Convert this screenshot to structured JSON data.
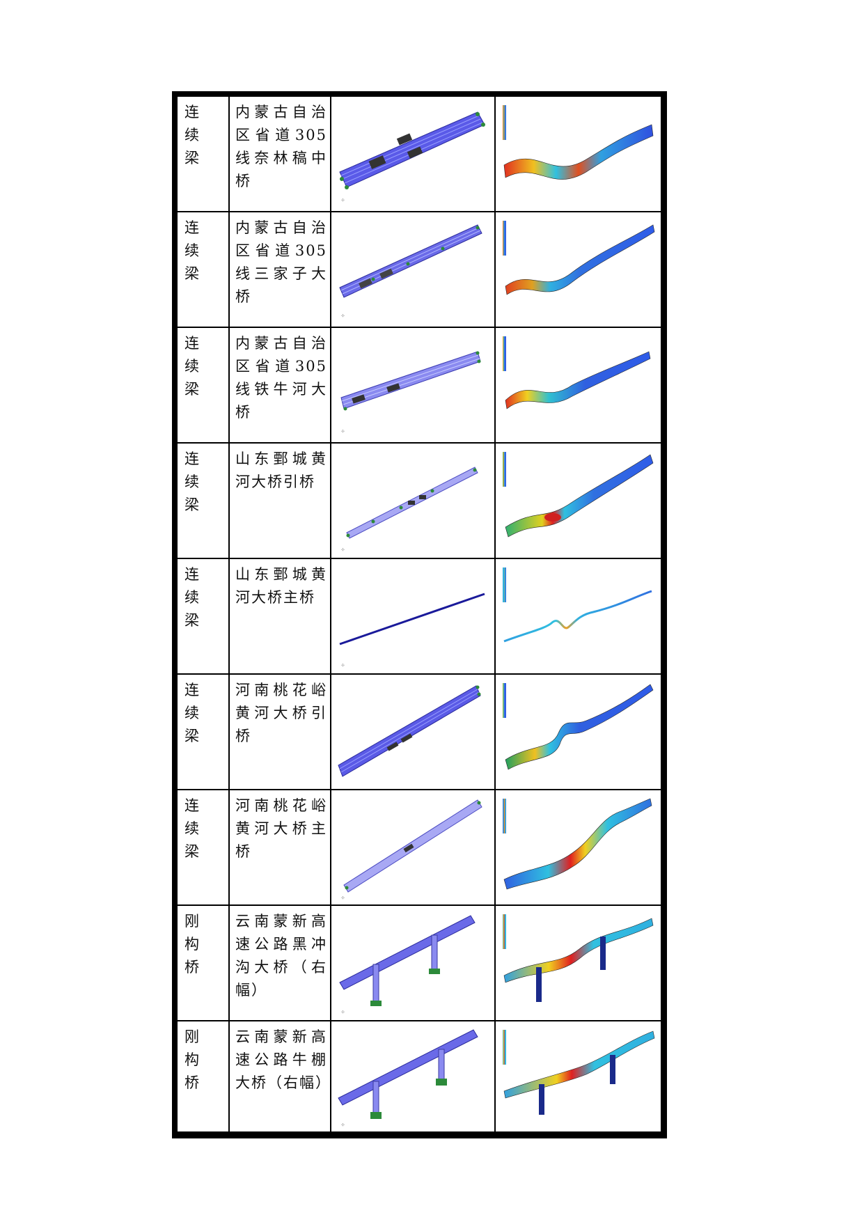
{
  "rows": [
    {
      "type": "连 续梁",
      "name": "内蒙古自治区省道305线奈林稿中桥"
    },
    {
      "type": "连 续梁",
      "name": "内蒙古自治区省道305线三家子大桥"
    },
    {
      "type": "连 续梁",
      "name": "内蒙古自治区省道305线铁牛河大桥"
    },
    {
      "type": "连 续梁",
      "name": "山东鄄城黄河大桥引桥"
    },
    {
      "type": "连 续梁",
      "name": "山东鄄城黄河大桥主桥"
    },
    {
      "type": "连 续梁",
      "name": "河南桃花峪黄河大桥引桥"
    },
    {
      "type": "连 续梁",
      "name": "河南桃花峪黄河大桥主桥"
    },
    {
      "type": "刚 构桥",
      "name": "云南蒙新高速公路黑冲沟大桥（右幅）"
    },
    {
      "type": "刚 构桥",
      "name": "云南蒙新高速公路牛棚大桥（右幅）"
    }
  ]
}
